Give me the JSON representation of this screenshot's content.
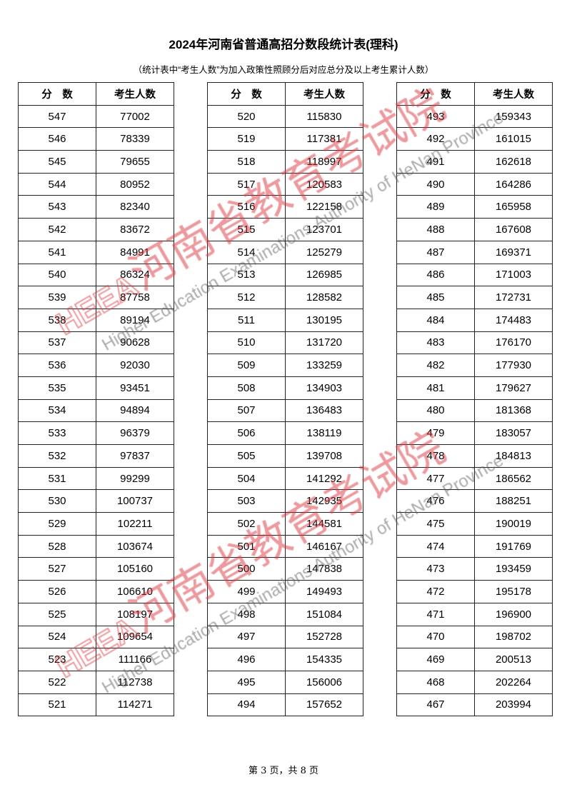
{
  "title": "2024年河南省普通高招分数段统计表(理科)",
  "subtitle": "（统计表中“考生人数”为加入政策性照顾分后对应总分及以上考生累计人数）",
  "columns": {
    "score": "分　数",
    "count": "考生人数"
  },
  "tables": [
    {
      "rows": [
        [
          "547",
          "77002"
        ],
        [
          "546",
          "78339"
        ],
        [
          "545",
          "79655"
        ],
        [
          "544",
          "80952"
        ],
        [
          "543",
          "82340"
        ],
        [
          "542",
          "83672"
        ],
        [
          "541",
          "84991"
        ],
        [
          "540",
          "86324"
        ],
        [
          "539",
          "87758"
        ],
        [
          "538",
          "89194"
        ],
        [
          "537",
          "90628"
        ],
        [
          "536",
          "92030"
        ],
        [
          "535",
          "93451"
        ],
        [
          "534",
          "94894"
        ],
        [
          "533",
          "96379"
        ],
        [
          "532",
          "97837"
        ],
        [
          "531",
          "99299"
        ],
        [
          "530",
          "100737"
        ],
        [
          "529",
          "102211"
        ],
        [
          "528",
          "103674"
        ],
        [
          "527",
          "105160"
        ],
        [
          "526",
          "106610"
        ],
        [
          "525",
          "108197"
        ],
        [
          "524",
          "109654"
        ],
        [
          "523",
          "111166"
        ],
        [
          "522",
          "112738"
        ],
        [
          "521",
          "114271"
        ]
      ]
    },
    {
      "rows": [
        [
          "520",
          "115830"
        ],
        [
          "519",
          "117381"
        ],
        [
          "518",
          "118997"
        ],
        [
          "517",
          "120583"
        ],
        [
          "516",
          "122158"
        ],
        [
          "515",
          "123701"
        ],
        [
          "514",
          "125279"
        ],
        [
          "513",
          "126985"
        ],
        [
          "512",
          "128582"
        ],
        [
          "511",
          "130195"
        ],
        [
          "510",
          "131720"
        ],
        [
          "509",
          "133259"
        ],
        [
          "508",
          "134903"
        ],
        [
          "507",
          "136483"
        ],
        [
          "506",
          "138119"
        ],
        [
          "505",
          "139708"
        ],
        [
          "504",
          "141292"
        ],
        [
          "503",
          "142935"
        ],
        [
          "502",
          "144581"
        ],
        [
          "501",
          "146167"
        ],
        [
          "500",
          "147838"
        ],
        [
          "499",
          "149493"
        ],
        [
          "498",
          "151084"
        ],
        [
          "497",
          "152728"
        ],
        [
          "496",
          "154335"
        ],
        [
          "495",
          "156006"
        ],
        [
          "494",
          "157652"
        ]
      ]
    },
    {
      "rows": [
        [
          "493",
          "159343"
        ],
        [
          "492",
          "161015"
        ],
        [
          "491",
          "162618"
        ],
        [
          "490",
          "164286"
        ],
        [
          "489",
          "165958"
        ],
        [
          "488",
          "167608"
        ],
        [
          "487",
          "169371"
        ],
        [
          "486",
          "171003"
        ],
        [
          "485",
          "172731"
        ],
        [
          "484",
          "174483"
        ],
        [
          "483",
          "176170"
        ],
        [
          "482",
          "177930"
        ],
        [
          "481",
          "179627"
        ],
        [
          "480",
          "181368"
        ],
        [
          "479",
          "183057"
        ],
        [
          "478",
          "184813"
        ],
        [
          "477",
          "186562"
        ],
        [
          "476",
          "188251"
        ],
        [
          "475",
          "190019"
        ],
        [
          "474",
          "191769"
        ],
        [
          "473",
          "193459"
        ],
        [
          "472",
          "195178"
        ],
        [
          "471",
          "196900"
        ],
        [
          "470",
          "198702"
        ],
        [
          "469",
          "200513"
        ],
        [
          "468",
          "202264"
        ],
        [
          "467",
          "203994"
        ]
      ]
    }
  ],
  "watermark": {
    "logo": "HEEA",
    "cn": "河南省教育考试院",
    "en": "Higher Education Examinations Authority of HeNan Province",
    "color": "#d9363e"
  },
  "footer": "第 3 页，共 8 页"
}
